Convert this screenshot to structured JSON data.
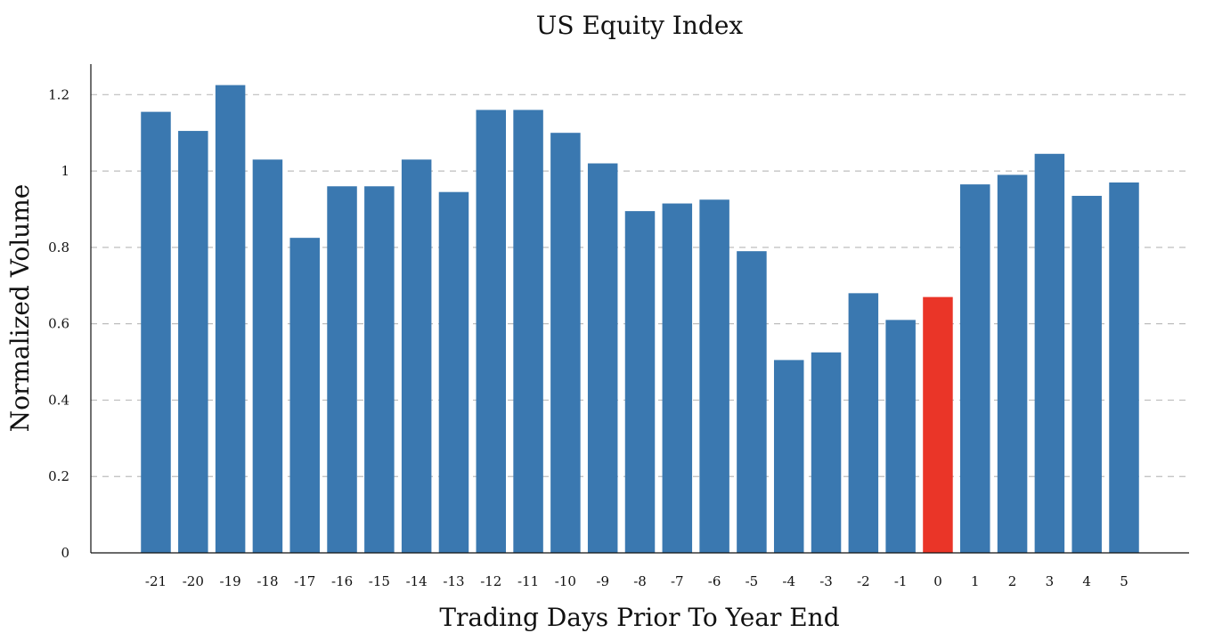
{
  "chart_data": {
    "type": "bar",
    "title": "US Equity Index",
    "xlabel": "Trading Days Prior To Year End",
    "ylabel": "Normalized Volume",
    "categories": [
      "-21",
      "-20",
      "-19",
      "-18",
      "-17",
      "-16",
      "-15",
      "-14",
      "-13",
      "-12",
      "-11",
      "-10",
      "-9",
      "-8",
      "-7",
      "-6",
      "-5",
      "-4",
      "-3",
      "-2",
      "-1",
      "0",
      "1",
      "2",
      "3",
      "4",
      "5"
    ],
    "values": [
      1.155,
      1.105,
      1.225,
      1.03,
      0.825,
      0.96,
      0.96,
      1.03,
      0.945,
      1.16,
      1.16,
      1.1,
      1.02,
      0.895,
      0.915,
      0.925,
      0.79,
      0.505,
      0.525,
      0.68,
      0.61,
      0.67,
      0.965,
      0.99,
      1.045,
      0.935,
      0.97
    ],
    "highlight_category": "0",
    "ylim": [
      0,
      1.28
    ],
    "yticks": [
      0,
      0.2,
      0.4,
      0.6,
      0.8,
      1,
      1.2
    ],
    "ytick_labels": [
      "0",
      "0.2",
      "0.4",
      "0.6",
      "0.8",
      "1",
      "1.2"
    ],
    "grid": "horizontal dashed",
    "colors": {
      "bar": "#3a78b0",
      "highlight": "#ea3528"
    }
  }
}
